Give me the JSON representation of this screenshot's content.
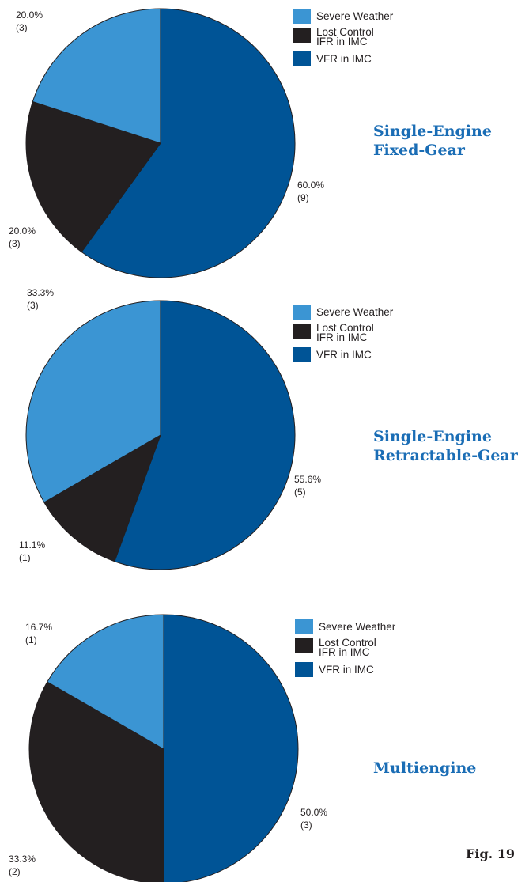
{
  "colors": {
    "severe_weather": "#3b95d3",
    "lost_control_ifr": "#231f20",
    "vfr_in_imc": "#005496",
    "title": "#1a6db5"
  },
  "legend": [
    {
      "label": "Severe Weather",
      "color": "#3b95d3"
    },
    {
      "label": "Lost Control",
      "label2": "IFR in IMC",
      "color": "#231f20"
    },
    {
      "label": "VFR in IMC",
      "color": "#005496"
    }
  ],
  "figure_label": "Fig. 19",
  "chart_data": [
    {
      "type": "pie",
      "title": [
        "Single-Engine",
        "Fixed-Gear"
      ],
      "slices": [
        {
          "name": "VFR in IMC",
          "value": 9,
          "percent": "60.0%",
          "count": "(9)",
          "color": "#005496"
        },
        {
          "name": "Lost Control IFR in IMC",
          "value": 3,
          "percent": "20.0%",
          "count": "(3)",
          "color": "#231f20"
        },
        {
          "name": "Severe Weather",
          "value": 3,
          "percent": "20.0%",
          "count": "(3)",
          "color": "#3b95d3"
        }
      ]
    },
    {
      "type": "pie",
      "title": [
        "Single-Engine",
        "Retractable-Gear"
      ],
      "slices": [
        {
          "name": "VFR in IMC",
          "value": 5,
          "percent": "55.6%",
          "count": "(5)",
          "color": "#005496"
        },
        {
          "name": "Lost Control IFR in IMC",
          "value": 1,
          "percent": "11.1%",
          "count": "(1)",
          "color": "#231f20"
        },
        {
          "name": "Severe Weather",
          "value": 3,
          "percent": "33.3%",
          "count": "(3)",
          "color": "#3b95d3"
        }
      ]
    },
    {
      "type": "pie",
      "title": [
        "Multiengine"
      ],
      "slices": [
        {
          "name": "VFR in IMC",
          "value": 3,
          "percent": "50.0%",
          "count": "(3)",
          "color": "#005496"
        },
        {
          "name": "Lost Control IFR in IMC",
          "value": 2,
          "percent": "33.3%",
          "count": "(2)",
          "color": "#231f20"
        },
        {
          "name": "Severe Weather",
          "value": 1,
          "percent": "16.7%",
          "count": "(1)",
          "color": "#3b95d3"
        }
      ]
    }
  ]
}
